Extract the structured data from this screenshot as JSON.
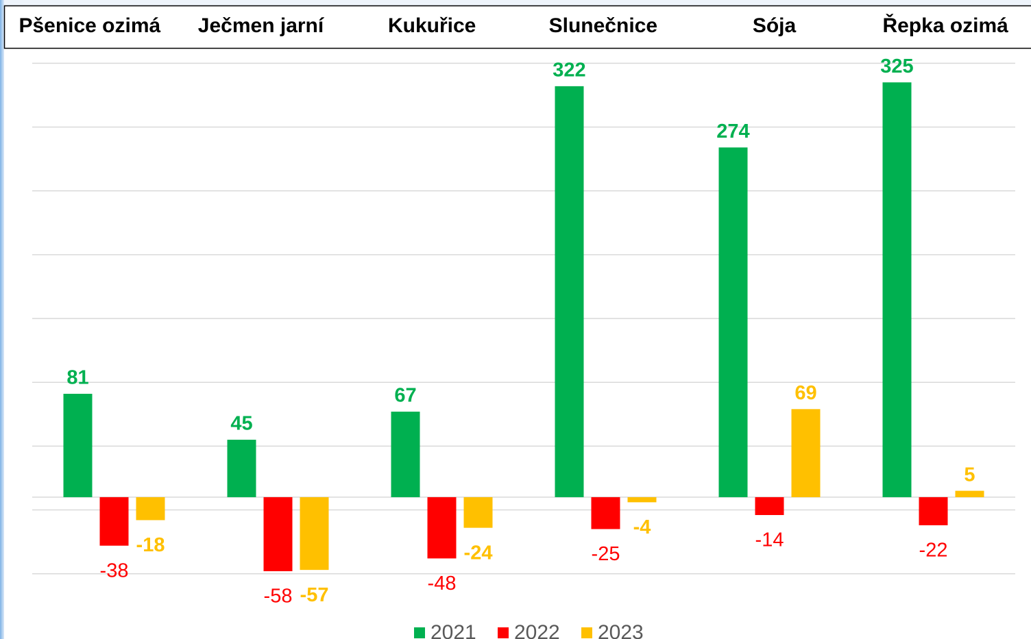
{
  "chart_data": {
    "type": "bar",
    "categories": [
      "Pšenice ozimá",
      "Ječmen jarní",
      "Kukuřice",
      "Slunečnice",
      "Sója",
      "Řepka ozimá"
    ],
    "series": [
      {
        "name": "2021",
        "color": "#00b050",
        "values": [
          81,
          45,
          67,
          322,
          274,
          325
        ]
      },
      {
        "name": "2022",
        "color": "#ff0000",
        "values": [
          -38,
          -58,
          -48,
          -25,
          -14,
          -22
        ]
      },
      {
        "name": "2023",
        "color": "#ffc000",
        "values": [
          -18,
          -57,
          -24,
          -4,
          69,
          5
        ]
      }
    ],
    "ylim": [
      -80,
      345
    ],
    "yticks": [
      -60,
      -10,
      40,
      90,
      140,
      190,
      240,
      290,
      340
    ],
    "grid": true,
    "legend": "bottom"
  }
}
